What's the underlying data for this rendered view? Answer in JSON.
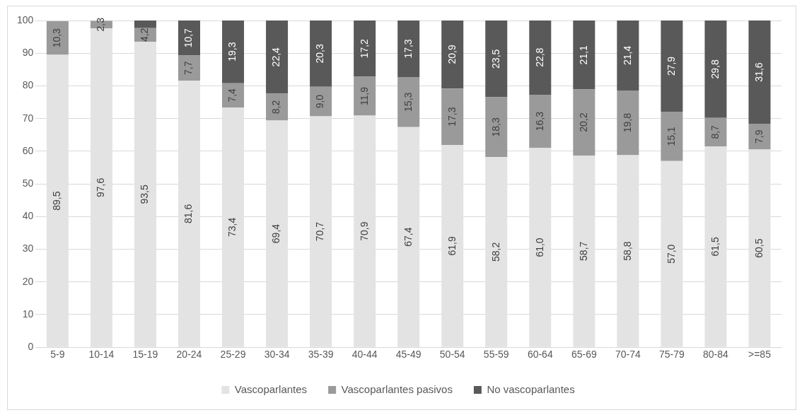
{
  "chart_data": {
    "type": "bar",
    "stacked": true,
    "categories": [
      "5-9",
      "10-14",
      "15-19",
      "20-24",
      "25-29",
      "30-34",
      "35-39",
      "40-44",
      "45-49",
      "50-54",
      "55-59",
      "60-64",
      "65-69",
      "70-74",
      "75-79",
      "80-84",
      ">=85"
    ],
    "series": [
      {
        "name": "Vascoparlantes",
        "color": "#e3e3e3",
        "values": [
          89.5,
          97.6,
          93.5,
          81.6,
          73.4,
          69.4,
          70.7,
          70.9,
          67.4,
          61.9,
          58.2,
          61.0,
          58.7,
          58.8,
          57.0,
          61.5,
          60.5
        ],
        "value_labels": [
          "89,5",
          "97,6",
          "93,5",
          "81,6",
          "73,4",
          "69,4",
          "70,7",
          "70,9",
          "67,4",
          "61,9",
          "58,2",
          "61,0",
          "58,7",
          "58,8",
          "57,0",
          "61,5",
          "60,5"
        ]
      },
      {
        "name": "Vascoparlantes pasivos",
        "color": "#9a9a9a",
        "values": [
          10.3,
          2.3,
          4.2,
          7.7,
          7.4,
          8.2,
          9.0,
          11.9,
          15.3,
          17.3,
          18.3,
          16.3,
          20.2,
          19.8,
          15.1,
          8.7,
          7.9
        ],
        "value_labels": [
          "10,3",
          "2,3",
          "4,2",
          "7,7",
          "7,4",
          "8,2",
          "9,0",
          "11,9",
          "15,3",
          "17,3",
          "18,3",
          "16,3",
          "20,2",
          "19,8",
          "15,1",
          "8,7",
          "7,9"
        ]
      },
      {
        "name": "No vascoparlantes",
        "color": "#595959",
        "values": [
          null,
          null,
          2.3,
          10.7,
          19.3,
          22.4,
          20.3,
          17.2,
          17.3,
          20.9,
          23.5,
          22.8,
          21.1,
          21.4,
          27.9,
          29.8,
          31.6
        ],
        "value_labels": [
          null,
          null,
          null,
          "10,7",
          "19,3",
          "22,4",
          "20,3",
          "17,2",
          "17,3",
          "20,9",
          "23,5",
          "22,8",
          "21,1",
          "21,4",
          "27,9",
          "29,8",
          "31,6"
        ]
      }
    ],
    "ylim": [
      0,
      100
    ],
    "yticks": [
      0,
      10,
      20,
      30,
      40,
      50,
      60,
      70,
      80,
      90,
      100
    ],
    "grid": "y",
    "legend": "bottom"
  }
}
